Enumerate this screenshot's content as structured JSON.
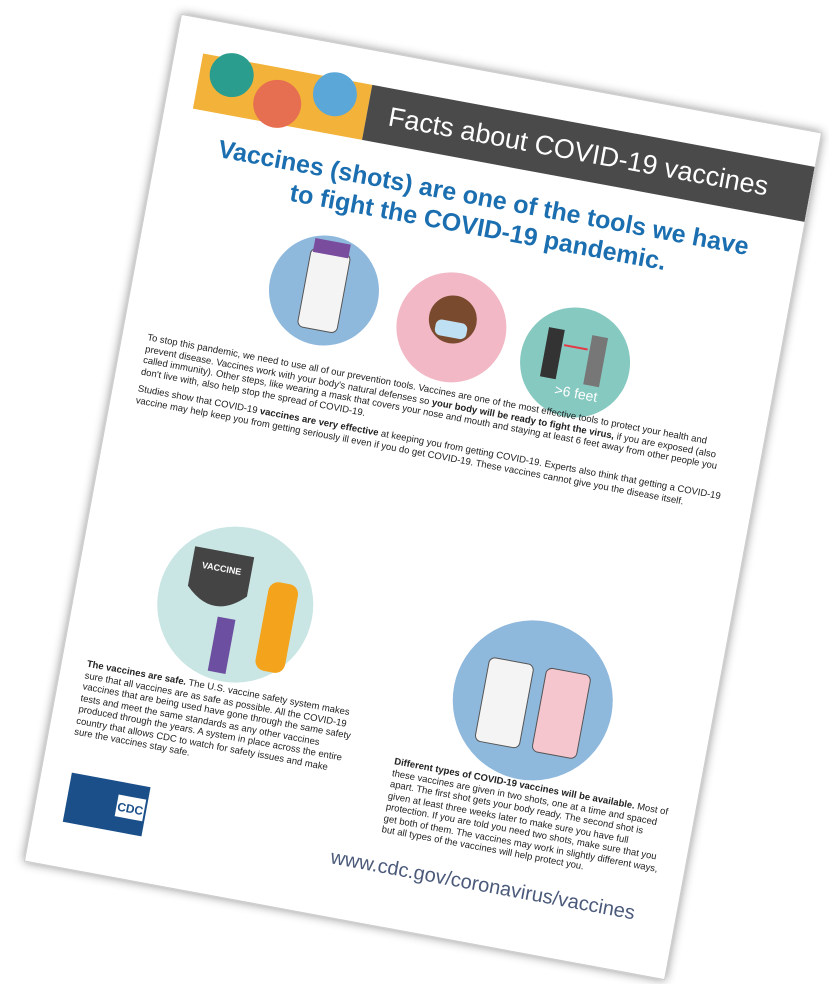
{
  "header": {
    "title": "Facts about COVID-19 vaccines"
  },
  "headline": "Vaccines (shots) are one of the tools we have to fight the COVID-19 pandemic.",
  "icons": {
    "distance_label": ">6 feet"
  },
  "intro": [
    [
      {
        "text": "To stop this pandemic, we need to use all of our prevention tools. Vaccines are one of the most effective tools to protect your health and prevent disease. Vaccines work with your body's natural defenses so ",
        "bold": false
      },
      {
        "text": "your body will be ready to fight the virus,",
        "bold": true
      },
      {
        "text": " if you are exposed (also called immunity). Other steps, like wearing a mask that covers your nose and mouth and staying at least 6 feet away from other people you don't live with, also help stop the spread of COVID-19.",
        "bold": false
      }
    ],
    [
      {
        "text": "Studies show that COVID-19 ",
        "bold": false
      },
      {
        "text": "vaccines are very effective",
        "bold": true
      },
      {
        "text": " at keeping you from getting COVID-19. Experts also think that getting a COVID-19 vaccine may help keep you from getting seriously ill even if you do get COVID-19. These vaccines cannot give you the disease itself.",
        "bold": false
      }
    ]
  ],
  "shield_label": "VACCINE",
  "safe": [
    {
      "text": "The vaccines are safe.",
      "bold": true
    },
    {
      "text": " The U.S. vaccine safety system makes sure that all vaccines are as safe as possible. All the COVID-19 vaccines that are being used have gone through the same safety tests and meet the same standards as any other vaccines produced through the years. A system in place across the entire country that allows CDC to watch for safety issues and make sure the vaccines stay safe.",
      "bold": false
    }
  ],
  "types": [
    {
      "text": "Different types of COVID-19 vaccines will be available.",
      "bold": true
    },
    {
      "text": " Most of these vaccines are given in two shots, one at a time and spaced apart. The first shot gets your body ready. The second shot is given at least three weeks later to make sure you have full protection. If you are told you need two shots, make sure that you get both of them. The vaccines may work in slightly different ways, but all types of the vaccines will help protect you.",
      "bold": false
    }
  ],
  "logo": "CDC",
  "footer": {
    "url": "www.cdc.gov/coronavirus/vaccines"
  }
}
